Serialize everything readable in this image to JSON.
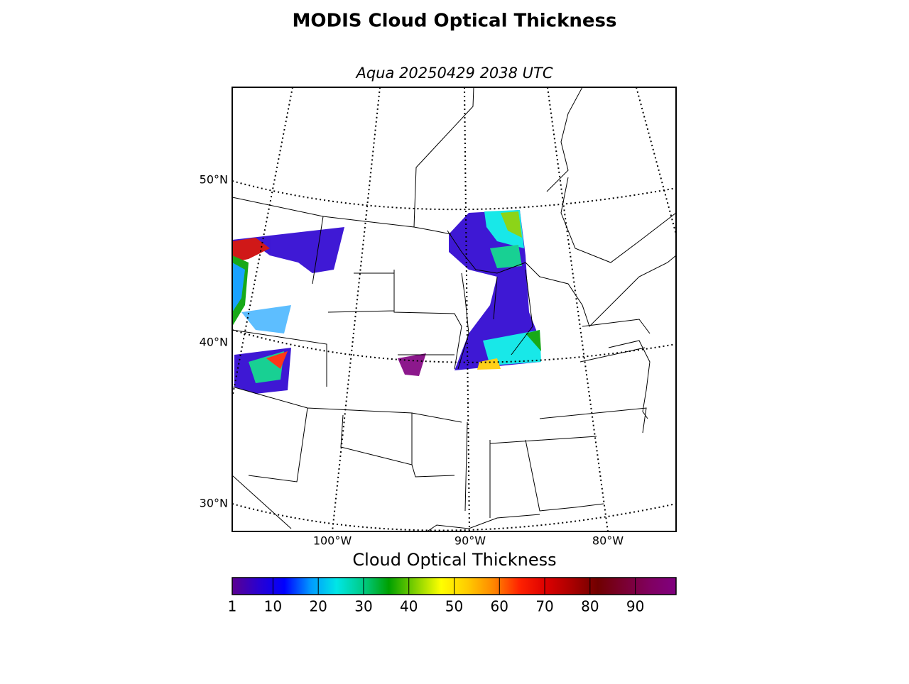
{
  "header": {
    "title": "MODIS Cloud Optical Thickness",
    "subtitle": "Aqua 20250429 2038 UTC"
  },
  "map": {
    "lat_labels": [
      "50°N",
      "40°N",
      "30°N"
    ],
    "lon_labels": [
      "100°W",
      "90°W",
      "80°W"
    ]
  },
  "chart_data": {
    "type": "colorbar",
    "label": "Cloud Optical Thickness",
    "xlim": [
      1,
      99
    ],
    "xticks": [
      1,
      10,
      20,
      30,
      40,
      50,
      60,
      70,
      80,
      90
    ],
    "colors": [
      "#5b0090",
      "#2a00d0",
      "#0000ff",
      "#0099ff",
      "#00e6e6",
      "#00cc88",
      "#00a000",
      "#80d000",
      "#ffff00",
      "#ffcc00",
      "#ff8800",
      "#ff2200",
      "#dd0000",
      "#aa0000",
      "#700000",
      "#7a0030",
      "#800060",
      "#800080"
    ]
  }
}
